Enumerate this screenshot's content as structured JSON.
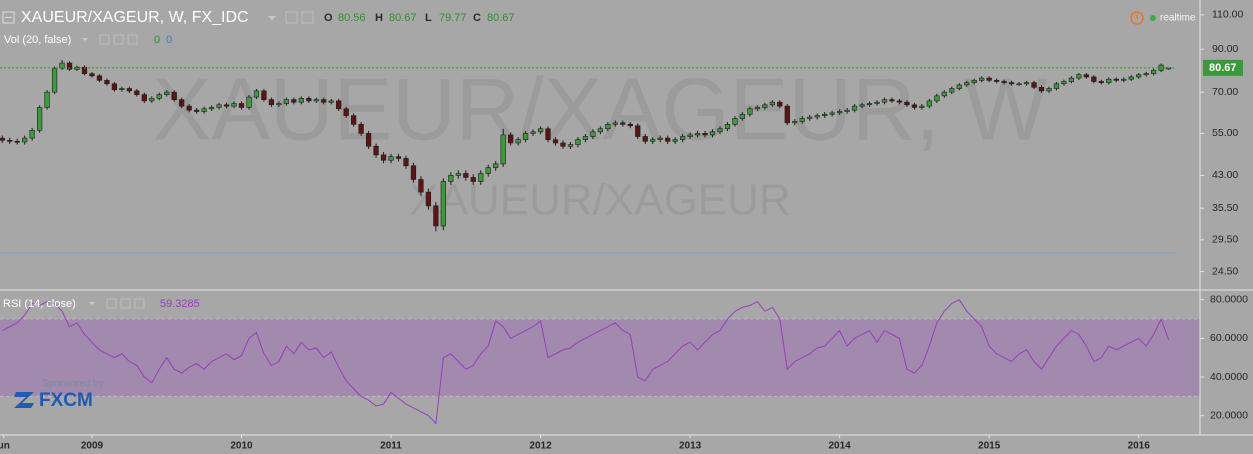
{
  "chart_data": [
    {
      "type": "candlestick",
      "title": "XAUEUR/XAGEUR, W, FX_IDC",
      "watermark": [
        "XAUEUR/XAGEUR, W",
        "XAUEUR/XAGEUR"
      ],
      "header_labels": [
        "O",
        "H",
        "L",
        "C"
      ],
      "status": "realtime",
      "volume": {
        "label": "Vol (20, false)",
        "values": [
          0,
          0
        ]
      },
      "log_scale": true,
      "grid": false,
      "up_color": "#3c9c3c",
      "down_color": "#5e1414",
      "last_price_color": "#3a9a3a",
      "xlim": [
        2008.385,
        2016.41
      ],
      "xticks": [
        {
          "value": 2008.41,
          "label": "un"
        },
        2009,
        2010,
        2011,
        2012,
        2013,
        2014,
        2015,
        2016
      ],
      "ylim": [
        22,
        120
      ],
      "yticks": [
        {
          "value": 110,
          "label": "110.00"
        },
        {
          "value": 90,
          "label": "90.00"
        },
        {
          "value": 70,
          "label": "70.00"
        },
        {
          "value": 55,
          "label": "55.00"
        },
        {
          "value": 43,
          "label": "43.00"
        },
        {
          "value": 35.5,
          "label": "35.50"
        },
        {
          "value": 29.5,
          "label": "29.50"
        },
        {
          "value": 24.5,
          "label": "24.50"
        }
      ],
      "x": [
        2008.4,
        2008.45,
        2008.5,
        2008.55,
        2008.6,
        2008.65,
        2008.7,
        2008.75,
        2008.8,
        2008.85,
        2008.9,
        2008.95,
        2009,
        2009.05,
        2009.1,
        2009.15,
        2009.2,
        2009.25,
        2009.3,
        2009.35,
        2009.4,
        2009.45,
        2009.5,
        2009.55,
        2009.6,
        2009.65,
        2009.7,
        2009.75,
        2009.8,
        2009.85,
        2009.9,
        2009.95,
        2010,
        2010.05,
        2010.1,
        2010.15,
        2010.2,
        2010.25,
        2010.3,
        2010.35,
        2010.4,
        2010.45,
        2010.5,
        2010.55,
        2010.6,
        2010.65,
        2010.7,
        2010.75,
        2010.8,
        2010.85,
        2010.9,
        2010.95,
        2011,
        2011.05,
        2011.1,
        2011.15,
        2011.2,
        2011.25,
        2011.3,
        2011.35,
        2011.4,
        2011.45,
        2011.5,
        2011.55,
        2011.6,
        2011.65,
        2011.7,
        2011.75,
        2011.8,
        2011.85,
        2011.9,
        2011.95,
        2012,
        2012.05,
        2012.1,
        2012.15,
        2012.2,
        2012.25,
        2012.3,
        2012.35,
        2012.4,
        2012.45,
        2012.5,
        2012.55,
        2012.6,
        2012.65,
        2012.7,
        2012.75,
        2012.8,
        2012.85,
        2012.9,
        2012.95,
        2013,
        2013.05,
        2013.1,
        2013.15,
        2013.2,
        2013.25,
        2013.3,
        2013.35,
        2013.4,
        2013.45,
        2013.5,
        2013.55,
        2013.6,
        2013.65,
        2013.7,
        2013.75,
        2013.8,
        2013.85,
        2013.9,
        2013.95,
        2014,
        2014.05,
        2014.1,
        2014.15,
        2014.2,
        2014.25,
        2014.3,
        2014.35,
        2014.4,
        2014.45,
        2014.5,
        2014.55,
        2014.6,
        2014.65,
        2014.7,
        2014.75,
        2014.8,
        2014.85,
        2014.9,
        2014.95,
        2015,
        2015.05,
        2015.1,
        2015.15,
        2015.2,
        2015.25,
        2015.3,
        2015.35,
        2015.4,
        2015.45,
        2015.5,
        2015.55,
        2015.6,
        2015.65,
        2015.7,
        2015.75,
        2015.8,
        2015.85,
        2015.9,
        2015.95,
        2016,
        2016.05,
        2016.1,
        2016.15,
        2016.2
      ],
      "open": [
        53.5,
        52.8,
        52.5,
        52.3,
        53.5,
        56,
        64,
        70,
        80.5,
        83,
        80,
        81,
        78,
        77,
        75,
        73.5,
        71,
        71.5,
        70.5,
        69,
        66.5,
        67.5,
        69,
        70,
        67,
        64.5,
        63,
        62.5,
        63.5,
        64,
        65,
        64.5,
        65.5,
        64,
        68,
        70.5,
        67,
        65,
        65.5,
        67,
        66,
        67.5,
        66.5,
        67,
        66,
        66.5,
        63.5,
        61,
        58,
        55,
        51,
        48.5,
        47,
        48,
        47.5,
        45.5,
        42,
        39,
        36,
        32,
        41.5,
        43,
        43.5,
        42.5,
        41.5,
        43.5,
        45,
        46,
        54.5,
        52,
        53,
        55,
        55.5,
        56.5,
        53,
        52,
        51,
        51.5,
        53,
        54,
        55.5,
        56.5,
        58,
        58.5,
        58,
        57.5,
        54,
        52.5,
        53,
        53.5,
        52.5,
        53,
        54,
        54.5,
        55,
        54.5,
        55.5,
        56.5,
        58,
        60,
        61.5,
        63.5,
        64,
        65,
        66,
        64.5,
        58.5,
        59,
        60,
        60.5,
        61,
        61.5,
        62,
        62.5,
        63,
        64.5,
        65,
        65.5,
        66,
        67,
        66.5,
        66,
        65,
        64,
        64.5,
        66.5,
        68.5,
        70,
        71.5,
        73,
        74,
        75,
        76,
        75,
        74.5,
        74,
        73.5,
        73.5,
        74,
        72,
        70.5,
        71.5,
        73.5,
        74.5,
        76,
        77.5,
        76.5,
        74.5,
        74,
        75.5,
        75,
        75.5,
        76.5,
        77.5,
        78,
        79.5,
        80.56
      ],
      "high": [
        54.3,
        53.6,
        53.3,
        54.3,
        56.8,
        64.8,
        70.8,
        81.3,
        84.5,
        83.8,
        81.8,
        81.8,
        78.8,
        77.8,
        75.8,
        74.3,
        72.3,
        72.3,
        71.3,
        69.8,
        68.3,
        69.8,
        70.8,
        70.8,
        67.8,
        65.3,
        63.8,
        64.3,
        64.8,
        65.8,
        65.8,
        66.3,
        66.3,
        68.8,
        71.3,
        71.3,
        67.8,
        66.3,
        67.8,
        67.8,
        68.3,
        68.3,
        67.8,
        67.8,
        67.3,
        67.3,
        64.3,
        61.8,
        58.8,
        55.8,
        51.8,
        49.3,
        48.8,
        48.8,
        48.3,
        46.3,
        42.8,
        39.8,
        36.8,
        42.3,
        43.8,
        44.3,
        44.3,
        43.3,
        44.3,
        45.8,
        46.8,
        56.5,
        55.3,
        53.8,
        55.8,
        56.3,
        57.3,
        57.3,
        53.8,
        52.8,
        52.3,
        53.8,
        54.8,
        56.3,
        57.3,
        58.8,
        59.3,
        59.3,
        58.8,
        58.3,
        54.8,
        53.8,
        54.3,
        54.3,
        53.8,
        54.8,
        55.3,
        55.8,
        55.8,
        56.3,
        57.3,
        58.8,
        60.8,
        62.3,
        64.3,
        64.8,
        65.8,
        66.8,
        66.8,
        65.3,
        59.8,
        60.8,
        61.3,
        61.8,
        62.3,
        62.8,
        63.3,
        63.8,
        65.3,
        65.8,
        66.3,
        66.8,
        67.8,
        67.8,
        67.3,
        66.8,
        65.8,
        65.3,
        67.3,
        69.3,
        70.8,
        72.3,
        73.8,
        74.8,
        75.8,
        76.8,
        76.8,
        75.8,
        75.3,
        74.8,
        74.3,
        74.8,
        74.8,
        72.8,
        72.3,
        74.3,
        75.3,
        76.8,
        78.3,
        78.3,
        77.3,
        75.3,
        76.3,
        76.3,
        76.3,
        77.3,
        78.3,
        78.8,
        80.3,
        82.8,
        80.67
      ],
      "low": [
        52,
        51.7,
        51.5,
        51.5,
        52.7,
        55.2,
        63.2,
        69.2,
        79.7,
        79.2,
        79.2,
        77.2,
        76.2,
        74.2,
        72.7,
        70.2,
        70.2,
        69.7,
        68.2,
        65.7,
        65.7,
        66.7,
        68.2,
        66.2,
        63.7,
        62.2,
        61.7,
        61.7,
        62.7,
        63.2,
        63.7,
        63.7,
        63.2,
        63.2,
        67.2,
        66.2,
        64.2,
        64.2,
        64.7,
        65.2,
        65.2,
        65.7,
        65.7,
        65.2,
        65.2,
        62.7,
        60.2,
        57.2,
        54.2,
        50.2,
        47.7,
        46.2,
        46.2,
        46.7,
        44.7,
        41.2,
        38.2,
        35.2,
        31,
        31.2,
        40.7,
        42.2,
        41.7,
        40.7,
        40.7,
        42.7,
        44.2,
        45.2,
        51.2,
        51.2,
        52.2,
        54.2,
        54.7,
        52.2,
        51.2,
        50.2,
        50.2,
        50.7,
        52.2,
        53.2,
        54.7,
        55.7,
        57.2,
        57.2,
        56.7,
        53.2,
        51.7,
        51.7,
        52.2,
        51.7,
        51.7,
        52.2,
        53.2,
        53.7,
        53.7,
        53.7,
        54.7,
        55.7,
        57.2,
        59.2,
        60.7,
        62.7,
        63.2,
        64.2,
        63.7,
        57.7,
        57.7,
        58.2,
        59.2,
        59.7,
        60.2,
        60.7,
        61.2,
        61.7,
        62.2,
        63.7,
        64.2,
        64.7,
        65.2,
        65.7,
        65.2,
        64.2,
        63.2,
        63.2,
        63.7,
        65.7,
        67.7,
        69.2,
        70.7,
        72.2,
        73.2,
        74.2,
        74.2,
        73.7,
        73.2,
        72.7,
        72.7,
        72.7,
        71.2,
        69.7,
        69.7,
        70.7,
        72.7,
        73.7,
        75.2,
        75.7,
        73.7,
        73.2,
        73.2,
        74.2,
        74.2,
        74.7,
        75.7,
        76.7,
        77.2,
        78.7,
        79.77
      ],
      "close": [
        52.8,
        52.5,
        52.3,
        53.5,
        56,
        64,
        70,
        80.5,
        83,
        80,
        81,
        78,
        77,
        75,
        73.5,
        71,
        71.5,
        70.5,
        69,
        66.5,
        67.5,
        69,
        70,
        67,
        64.5,
        63,
        62.5,
        63.5,
        64,
        65,
        64.5,
        65.5,
        64,
        68,
        70.5,
        67,
        65,
        65.5,
        67,
        66,
        67.5,
        66.5,
        67,
        66,
        66.5,
        63.5,
        61,
        58,
        55,
        51,
        48.5,
        47,
        48,
        47.5,
        45.5,
        42,
        39,
        36,
        32,
        41.5,
        43,
        43.5,
        42.5,
        41.5,
        43.5,
        45,
        46,
        54.5,
        52,
        53,
        55,
        55.5,
        56.5,
        53,
        52,
        51,
        51.5,
        53,
        54,
        55.5,
        56.5,
        58,
        58.5,
        58,
        57.5,
        54,
        52.5,
        53,
        53.5,
        52.5,
        53,
        54,
        54.5,
        55,
        54.5,
        55.5,
        56.5,
        58,
        60,
        61.5,
        63.5,
        64,
        65,
        66,
        64.5,
        58.5,
        59,
        60,
        60.5,
        61,
        61.5,
        62,
        62.5,
        63,
        64.5,
        65,
        65.5,
        66,
        67,
        66.5,
        66,
        65,
        64,
        64.5,
        66.5,
        68.5,
        70,
        71.5,
        73,
        74,
        75,
        76,
        75,
        74.5,
        74,
        73.5,
        73.5,
        74,
        72,
        70.5,
        71.5,
        73.5,
        74.5,
        76,
        77.5,
        76.5,
        74.5,
        74,
        75.5,
        75,
        75.5,
        76.5,
        77.5,
        78,
        79.5,
        82,
        80.67
      ]
    },
    {
      "type": "line",
      "name": "RSI (14, close)",
      "color": "#9a3cc0",
      "band_color": "rgba(150,80,185,0.33)",
      "band": [
        30,
        70
      ],
      "ylim": [
        10,
        85
      ],
      "yticks": [
        {
          "value": 80,
          "label": "80.0000"
        },
        {
          "value": 60,
          "label": "60.0000"
        },
        {
          "value": 40,
          "label": "40.0000"
        },
        {
          "value": 20,
          "label": "20.0000"
        }
      ],
      "values": [
        64,
        66,
        68,
        72,
        78,
        77,
        79,
        78,
        74,
        66,
        68,
        62,
        58,
        54,
        52,
        50,
        52,
        48,
        46,
        40,
        37,
        44,
        50,
        44,
        42,
        45,
        47,
        44,
        48,
        50,
        52,
        49,
        51,
        60,
        63,
        52,
        46,
        48,
        56,
        52,
        58,
        54,
        55,
        50,
        53,
        45,
        38,
        34,
        30,
        28,
        25,
        26,
        32,
        29,
        26,
        24,
        22,
        20,
        16,
        50,
        52,
        48,
        44,
        46,
        52,
        56,
        69,
        66,
        60,
        62,
        64,
        66,
        69,
        50,
        52,
        54,
        55,
        58,
        60,
        62,
        64,
        66,
        68,
        64,
        62,
        40,
        38,
        44,
        46,
        48,
        52,
        56,
        58,
        54,
        58,
        62,
        64,
        70,
        74,
        76,
        77,
        79,
        74,
        76,
        70,
        44,
        48,
        50,
        52,
        55,
        56,
        60,
        64,
        56,
        60,
        62,
        64,
        58,
        64,
        62,
        60,
        44,
        42,
        46,
        56,
        68,
        74,
        78,
        80,
        74,
        70,
        66,
        56,
        52,
        50,
        48,
        52,
        54,
        48,
        44,
        50,
        56,
        60,
        64,
        62,
        56,
        48,
        50,
        56,
        54,
        56,
        58,
        60,
        56,
        62,
        70,
        59.3285
      ]
    }
  ],
  "sponsor": {
    "text": "Sponsored by",
    "brand": "FXCM"
  }
}
